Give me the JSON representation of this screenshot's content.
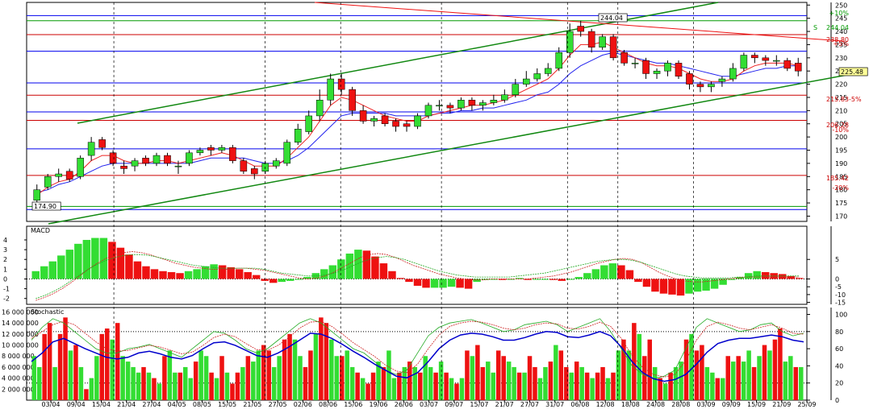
{
  "colors": {
    "up": "#33dd33",
    "down": "#ee1111",
    "grid": "#000000",
    "blue_level": "#0000ee",
    "red_level": "#cc0000",
    "green_level": "#009900",
    "channel": "#118811",
    "ma_red": "#ee2222",
    "ma_blue": "#2222ee",
    "stoch_k": "#22aa22",
    "stoch_d": "#cc2222",
    "stoch_main": "#0000cc",
    "badge_bg": "#ffff99"
  },
  "chart_data": [
    {
      "type": "candlestick",
      "panel": "price",
      "ylim": [
        168,
        251
      ],
      "y_ticks": [
        "250",
        "245",
        "240",
        "235",
        "230",
        "225",
        "220",
        "215",
        "210",
        "205",
        "200",
        "195",
        "190",
        "185",
        "180",
        "175",
        "170"
      ],
      "x_labels": [
        "03/04",
        "09/04",
        "15/04",
        "21/04",
        "27/04",
        "04/05",
        "08/05",
        "15/05",
        "21/05",
        "27/05",
        "02/06",
        "08/06",
        "15/06",
        "19/06",
        "26/06",
        "03/07",
        "09/07",
        "15/07",
        "21/07",
        "27/07",
        "31/07",
        "06/08",
        "12/08",
        "18/08",
        "24/08",
        "28/08",
        "03/09",
        "09/09",
        "15/09",
        "21/09",
        "25/09"
      ],
      "close": [
        180,
        185,
        186,
        184,
        192,
        198,
        196,
        190,
        188,
        191,
        190,
        193,
        190,
        189,
        194,
        195,
        195,
        196,
        191,
        187,
        186,
        190,
        191,
        198,
        203,
        208,
        214,
        222,
        218,
        210,
        206,
        207,
        205,
        204,
        204,
        208,
        212,
        212,
        211,
        214,
        212,
        213,
        214,
        216,
        220,
        222,
        224,
        226,
        232,
        240,
        240,
        234,
        238,
        230,
        228,
        228,
        224,
        225,
        228,
        223,
        220,
        219,
        220,
        222,
        226,
        231,
        230,
        229,
        229,
        226,
        225
      ],
      "open": [
        176,
        181,
        185,
        187,
        185,
        193,
        199,
        194,
        189,
        189,
        192,
        190,
        193,
        189,
        190,
        194,
        196,
        195,
        196,
        191,
        188,
        187,
        189,
        190,
        198,
        202,
        208,
        214,
        222,
        218,
        210,
        206,
        208,
        206,
        205,
        204,
        208,
        212,
        212,
        211,
        214,
        212,
        213,
        214,
        216,
        220,
        222,
        224,
        226,
        232,
        242,
        240,
        234,
        238,
        232,
        228,
        229,
        224,
        225,
        228,
        224,
        220,
        219,
        221,
        222,
        226,
        231,
        230,
        229,
        229,
        228
      ],
      "high": [
        182,
        186,
        188,
        188,
        193,
        200,
        200,
        195,
        191,
        192,
        193,
        194,
        194,
        191,
        195,
        196,
        197,
        197,
        197,
        192,
        189,
        191,
        192,
        199,
        205,
        210,
        218,
        224,
        224,
        219,
        212,
        208,
        209,
        207,
        206,
        209,
        213,
        214,
        213,
        215,
        215,
        214,
        216,
        218,
        222,
        225,
        226,
        228,
        234,
        243,
        244,
        241,
        239,
        239,
        233,
        230,
        230,
        226,
        229,
        229,
        225,
        221,
        221,
        223,
        228,
        232,
        232,
        231,
        231,
        230,
        230
      ],
      "low": [
        174,
        180,
        183,
        183,
        184,
        191,
        195,
        189,
        186,
        187,
        189,
        189,
        189,
        186,
        189,
        193,
        193,
        194,
        190,
        186,
        184,
        186,
        188,
        189,
        197,
        201,
        206,
        212,
        216,
        208,
        205,
        204,
        204,
        202,
        202,
        203,
        207,
        210,
        209,
        210,
        210,
        210,
        212,
        213,
        215,
        219,
        221,
        223,
        225,
        230,
        238,
        232,
        233,
        229,
        227,
        226,
        222,
        222,
        223,
        222,
        218,
        217,
        217,
        219,
        221,
        225,
        228,
        227,
        227,
        225,
        223
      ],
      "ma_red": [
        178,
        181,
        183,
        184,
        187,
        191,
        193,
        193,
        191,
        190,
        190,
        191,
        191,
        190,
        191,
        192,
        193,
        194,
        193,
        191,
        189,
        189,
        189,
        192,
        196,
        200,
        206,
        212,
        215,
        214,
        212,
        210,
        208,
        207,
        206,
        206,
        208,
        209,
        210,
        211,
        212,
        212,
        213,
        214,
        216,
        218,
        220,
        222,
        226,
        231,
        235,
        235,
        236,
        234,
        232,
        230,
        228,
        227,
        227,
        226,
        224,
        222,
        221,
        221,
        222,
        225,
        227,
        228,
        228,
        228,
        227
      ],
      "ma_blue": [
        179,
        180,
        182,
        183,
        185,
        187,
        189,
        190,
        190,
        190,
        190,
        190,
        190,
        190,
        190,
        191,
        192,
        192,
        192,
        192,
        191,
        190,
        190,
        191,
        193,
        196,
        200,
        204,
        208,
        209,
        209,
        209,
        209,
        208,
        208,
        208,
        208,
        209,
        209,
        210,
        210,
        211,
        211,
        212,
        213,
        214,
        216,
        217,
        220,
        224,
        227,
        229,
        231,
        232,
        231,
        230,
        229,
        228,
        228,
        227,
        226,
        225,
        224,
        223,
        223,
        224,
        225,
        226,
        226,
        227,
        227
      ],
      "levels": [
        {
          "color_key": "blue_level",
          "value": 246
        },
        {
          "color_key": "green_level",
          "value": 244.04
        },
        {
          "color_key": "red_level",
          "value": 238.8
        },
        {
          "color_key": "blue_level",
          "value": 232.5
        },
        {
          "color_key": "blue_level",
          "value": 220.5
        },
        {
          "color_key": "red_level",
          "value": 215.83
        },
        {
          "color_key": "blue_level",
          "value": 209.5
        },
        {
          "color_key": "red_level",
          "value": 206.28
        },
        {
          "color_key": "blue_level",
          "value": 195.5
        },
        {
          "color_key": "red_level",
          "value": 185.42
        },
        {
          "color_key": "green_level",
          "value": 173.7
        },
        {
          "color_key": "blue_level",
          "value": 172.5
        }
      ],
      "annotations": {
        "top_badge": "244.04",
        "price_badge": "225.48",
        "low_badge": "174.90",
        "letter_s": "S",
        "pct_plus10": "+10%",
        "val_2440": "244.04",
        "val_2388": "238.80",
        "val_pct_plus5": "+5%",
        "val_2158": "215.83",
        "val_pct_minus5": "-5%",
        "val_2062": "206.28",
        "val_pct_minus10": "-10%",
        "val_1854": "185.42",
        "val_pct_minus20": "-20%"
      }
    },
    {
      "type": "bar",
      "panel": "macd",
      "title": "MACD",
      "ylim": [
        -2.6,
        5.4
      ],
      "left_ticks": [
        "4",
        "3",
        "2",
        "1",
        "0",
        "-1",
        "-2"
      ],
      "right_ticks": [
        "5",
        "0",
        "-5",
        "-10",
        "-15"
      ],
      "values": [
        0.8,
        1.3,
        1.8,
        2.4,
        3.0,
        3.6,
        4.0,
        4.2,
        4.2,
        3.8,
        3.2,
        2.5,
        1.8,
        1.3,
        1.0,
        0.8,
        0.7,
        0.6,
        0.8,
        1.0,
        1.3,
        1.5,
        1.4,
        1.2,
        1.0,
        0.7,
        0.4,
        -0.2,
        -0.4,
        -0.3,
        -0.2,
        0.0,
        0.2,
        0.6,
        1.0,
        1.4,
        2.0,
        2.6,
        3.0,
        2.9,
        2.3,
        1.6,
        0.8,
        0.1,
        -0.3,
        -0.7,
        -0.9,
        -0.9,
        -0.9,
        -0.8,
        -0.9,
        -1.0,
        -0.3,
        -0.1,
        0.0,
        -0.1,
        0.0,
        0.1,
        -0.1,
        0.0,
        0.0,
        -0.1,
        -0.2,
        0.0,
        0.2,
        0.6,
        1.0,
        1.4,
        1.6,
        1.4,
        0.9,
        -0.3,
        -0.8,
        -1.3,
        -1.5,
        -1.6,
        -1.7,
        -1.5,
        -1.3,
        -1.2,
        -1.0,
        -0.6,
        -0.1,
        0.2,
        0.6,
        0.8,
        0.7,
        0.6,
        0.5,
        0.3,
        0.1
      ],
      "signal_red": [
        -2.2,
        -1.9,
        -1.5,
        -1.0,
        -0.4,
        0.3,
        1.0,
        1.6,
        2.1,
        2.5,
        2.7,
        2.8,
        2.7,
        2.5,
        2.2,
        1.9,
        1.6,
        1.4,
        1.2,
        1.1,
        1.0,
        1.0,
        1.0,
        1.1,
        1.1,
        1.0,
        0.9,
        0.7,
        0.5,
        0.3,
        0.1,
        0.0,
        0.1,
        0.3,
        0.7,
        1.2,
        1.7,
        2.2,
        2.5,
        2.6,
        2.5,
        2.2,
        1.8,
        1.4,
        1.1,
        0.8,
        0.5,
        0.3,
        0.1,
        0.0,
        -0.1,
        -0.1,
        0.0,
        0.0,
        0.0,
        0.0,
        0.0,
        0.1,
        0.2,
        0.3,
        0.5,
        0.7,
        1.0,
        1.3,
        1.6,
        1.8,
        2.0,
        2.1,
        2.0,
        1.7,
        1.2,
        0.7,
        0.3,
        0.0,
        -0.2,
        -0.3,
        -0.3,
        -0.2,
        -0.1,
        0.0,
        0.1,
        0.2,
        0.2,
        0.2,
        0.2,
        0.2,
        0.2,
        0.2
      ],
      "signal_green": [
        -2.0,
        -1.7,
        -1.3,
        -0.8,
        -0.2,
        0.4,
        1.0,
        1.5,
        1.9,
        2.2,
        2.4,
        2.5,
        2.5,
        2.4,
        2.2,
        2.0,
        1.8,
        1.6,
        1.4,
        1.3,
        1.2,
        1.1,
        1.1,
        1.1,
        1.1,
        1.1,
        1.0,
        0.8,
        0.6,
        0.5,
        0.4,
        0.3,
        0.3,
        0.4,
        0.6,
        0.9,
        1.3,
        1.7,
        2.0,
        2.2,
        2.3,
        2.2,
        2.0,
        1.7,
        1.4,
        1.1,
        0.8,
        0.6,
        0.4,
        0.3,
        0.2,
        0.2,
        0.2,
        0.2,
        0.2,
        0.3,
        0.4,
        0.5,
        0.6,
        0.8,
        1.0,
        1.2,
        1.4,
        1.6,
        1.8,
        1.9,
        2.0,
        2.0,
        1.9,
        1.7,
        1.4,
        1.1,
        0.8,
        0.5,
        0.3,
        0.2,
        0.1,
        0.1,
        0.1,
        0.1,
        0.2,
        0.2,
        0.3,
        0.3,
        0.3,
        0.3,
        0.3,
        0.3
      ]
    },
    {
      "type": "bar",
      "panel": "stochastic",
      "title": "Stochastic",
      "ylim": [
        0,
        16800000
      ],
      "left_ticks": [
        "16 000 000",
        "14 000 000",
        "12 000 000",
        "10 000 000",
        "8 000 000",
        "6 000 000",
        "4 000 000",
        "2 000 000"
      ],
      "right_ticks": [
        "100",
        "80",
        "60",
        "40",
        "20",
        "0"
      ],
      "volume": [
        8,
        6,
        12,
        14,
        6,
        12,
        15,
        9,
        10,
        6,
        2,
        4,
        8,
        12,
        13,
        11,
        14,
        8,
        7,
        6,
        5,
        6,
        5,
        4,
        3,
        8,
        9,
        5,
        5,
        6,
        4,
        7,
        9,
        8,
        5,
        4,
        8,
        5,
        3,
        5,
        6,
        8,
        7,
        9,
        10,
        9,
        6,
        8,
        11,
        12,
        11,
        8,
        6,
        9,
        12,
        15,
        14,
        11,
        8,
        8,
        9,
        6,
        5,
        4,
        3,
        5,
        7,
        6,
        9,
        4,
        5,
        6,
        7,
        6,
        5,
        8,
        6,
        5,
        7,
        5,
        4,
        3,
        4,
        9,
        8,
        10,
        6,
        7,
        5,
        9,
        8,
        7,
        6,
        5,
        5,
        8,
        6,
        4,
        6,
        7,
        10,
        9,
        6,
        5,
        7,
        6,
        5,
        4,
        5,
        6,
        4,
        5,
        9,
        11,
        9,
        14,
        12,
        8,
        11,
        6,
        4,
        3,
        5,
        6,
        7,
        11,
        12,
        9,
        10,
        6,
        5,
        4,
        4,
        8,
        7,
        8,
        7,
        9,
        6,
        8,
        10,
        9,
        11,
        13,
        7,
        8,
        6,
        6
      ],
      "vol_up": [
        1,
        1,
        0,
        0,
        1,
        0,
        0,
        1,
        0,
        1,
        0,
        1,
        1,
        0,
        0,
        1,
        0,
        1,
        1,
        1,
        1,
        0,
        1,
        0,
        1,
        0,
        1,
        1,
        0,
        1,
        1,
        0,
        1,
        1,
        0,
        1,
        0,
        1,
        0,
        0,
        1,
        0,
        1,
        1,
        0,
        0,
        1,
        1,
        0,
        0,
        1,
        1,
        0,
        0,
        1,
        0,
        0,
        1,
        1,
        0,
        1,
        1,
        0,
        1,
        0,
        0,
        1,
        0,
        1,
        1,
        0,
        1,
        0,
        1,
        0,
        1,
        1,
        0,
        1,
        0,
        1,
        0,
        1,
        0,
        1,
        0,
        0,
        1,
        1,
        0,
        0,
        1,
        1,
        0,
        1,
        0,
        0,
        1,
        1,
        0,
        1,
        0,
        0,
        1,
        0,
        1,
        0,
        1,
        0,
        0,
        1,
        0,
        1,
        0,
        1,
        0,
        1,
        0,
        0,
        1,
        0,
        1,
        0,
        1,
        1,
        0,
        1,
        0,
        0,
        1,
        1,
        0,
        1,
        0,
        1,
        0,
        1,
        1,
        0,
        1,
        0,
        1,
        0,
        0,
        1,
        1,
        0,
        1
      ],
      "k": [
        70,
        85,
        95,
        90,
        80,
        70,
        60,
        55,
        55,
        60,
        62,
        65,
        60,
        55,
        50,
        60,
        70,
        80,
        78,
        70,
        60,
        55,
        60,
        70,
        80,
        90,
        95,
        90,
        80,
        70,
        60,
        55,
        45,
        35,
        30,
        35,
        55,
        75,
        85,
        90,
        92,
        94,
        90,
        85,
        80,
        82,
        88,
        90,
        92,
        88,
        80,
        85,
        90,
        95,
        80,
        60,
        40,
        30,
        25,
        28,
        35,
        60,
        85,
        95,
        90,
        85,
        80,
        82,
        88,
        90,
        80,
        75,
        78
      ],
      "d": [
        72,
        80,
        88,
        92,
        88,
        78,
        68,
        60,
        57,
        58,
        61,
        64,
        62,
        58,
        54,
        56,
        64,
        73,
        77,
        74,
        66,
        59,
        58,
        64,
        73,
        84,
        91,
        92,
        86,
        77,
        67,
        59,
        51,
        41,
        34,
        32,
        42,
        60,
        76,
        86,
        90,
        92,
        91,
        88,
        84,
        82,
        84,
        88,
        90,
        89,
        84,
        83,
        86,
        91,
        86,
        72,
        52,
        38,
        30,
        27,
        30,
        46,
        70,
        86,
        91,
        88,
        84,
        82,
        85,
        88,
        84,
        78,
        77
      ],
      "main": [
        45,
        55,
        68,
        72,
        66,
        60,
        55,
        50,
        48,
        50,
        55,
        57,
        54,
        50,
        48,
        52,
        60,
        67,
        68,
        64,
        58,
        52,
        50,
        55,
        62,
        70,
        78,
        77,
        72,
        65,
        57,
        50,
        42,
        35,
        28,
        26,
        32,
        45,
        60,
        70,
        76,
        78,
        77,
        74,
        70,
        70,
        73,
        77,
        80,
        79,
        74,
        73,
        76,
        80,
        75,
        62,
        45,
        32,
        25,
        22,
        24,
        30,
        42,
        56,
        66,
        70,
        72,
        72,
        74,
        76,
        74,
        70,
        68
      ]
    }
  ]
}
